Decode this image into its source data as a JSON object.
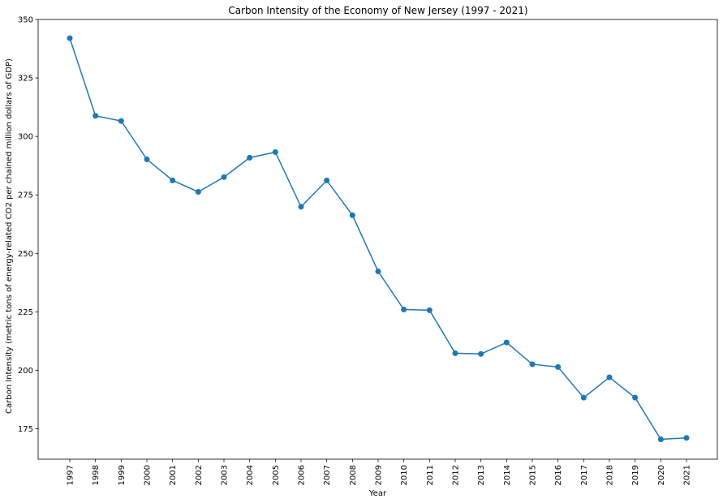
{
  "chart_data": {
    "type": "line",
    "title": "Carbon Intensity of the Economy of New Jersey (1997 - 2021)",
    "xlabel": "Year",
    "ylabel": "Carbon Intensity (metric tons of energy-related CO2 per chained million dollars of GDP)",
    "categories": [
      "1997",
      "1998",
      "1999",
      "2000",
      "2001",
      "2002",
      "2003",
      "2004",
      "2005",
      "2006",
      "2007",
      "2008",
      "2009",
      "2010",
      "2011",
      "2012",
      "2013",
      "2014",
      "2015",
      "2016",
      "2017",
      "2018",
      "2019",
      "2020",
      "2021"
    ],
    "series": [
      {
        "values": [
          342.0,
          308.8,
          306.6,
          290.2,
          281.2,
          276.3,
          282.6,
          290.9,
          293.3,
          269.9,
          281.2,
          266.3,
          242.3,
          226.0,
          225.7,
          207.3,
          207.0,
          211.9,
          202.6,
          201.4,
          188.3,
          197.0,
          188.3,
          170.5,
          171.1
        ],
        "color": "#1f77b4"
      }
    ],
    "ylim": [
      162,
      350
    ],
    "yticks": [
      175,
      200,
      225,
      250,
      275,
      300,
      325,
      350
    ],
    "grid": false,
    "marker": "circle"
  }
}
